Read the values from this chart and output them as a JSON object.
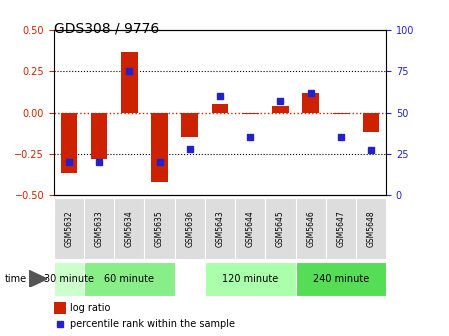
{
  "title": "GDS308 / 9776",
  "samples": [
    "GSM5632",
    "GSM5633",
    "GSM5634",
    "GSM5635",
    "GSM5636",
    "GSM5643",
    "GSM5644",
    "GSM5645",
    "GSM5646",
    "GSM5647",
    "GSM5648"
  ],
  "log_ratio": [
    -0.37,
    -0.28,
    0.37,
    -0.42,
    -0.15,
    0.05,
    -0.01,
    0.04,
    0.12,
    -0.01,
    -0.12
  ],
  "percentile": [
    20,
    20,
    75,
    20,
    28,
    60,
    35,
    57,
    62,
    35,
    27
  ],
  "time_groups": [
    {
      "label": "30 minute",
      "start": 0,
      "end": 1,
      "color": "#ccffcc"
    },
    {
      "label": "60 minute",
      "start": 1,
      "end": 4,
      "color": "#88ee88"
    },
    {
      "label": "120 minute",
      "start": 5,
      "end": 8,
      "color": "#aaffaa"
    },
    {
      "label": "240 minute",
      "start": 8,
      "end": 11,
      "color": "#55dd55"
    }
  ],
  "ylim_left": [
    -0.5,
    0.5
  ],
  "ylim_right": [
    0,
    100
  ],
  "bar_color": "#cc2200",
  "dot_color": "#2222cc",
  "bg_color": "#ffffff",
  "zero_line_color": "#cc2200",
  "label_log_ratio": "log ratio",
  "label_percentile": "percentile rank within the sample",
  "xlabel_time": "time",
  "tick_label_size": 7,
  "bar_width": 0.55
}
